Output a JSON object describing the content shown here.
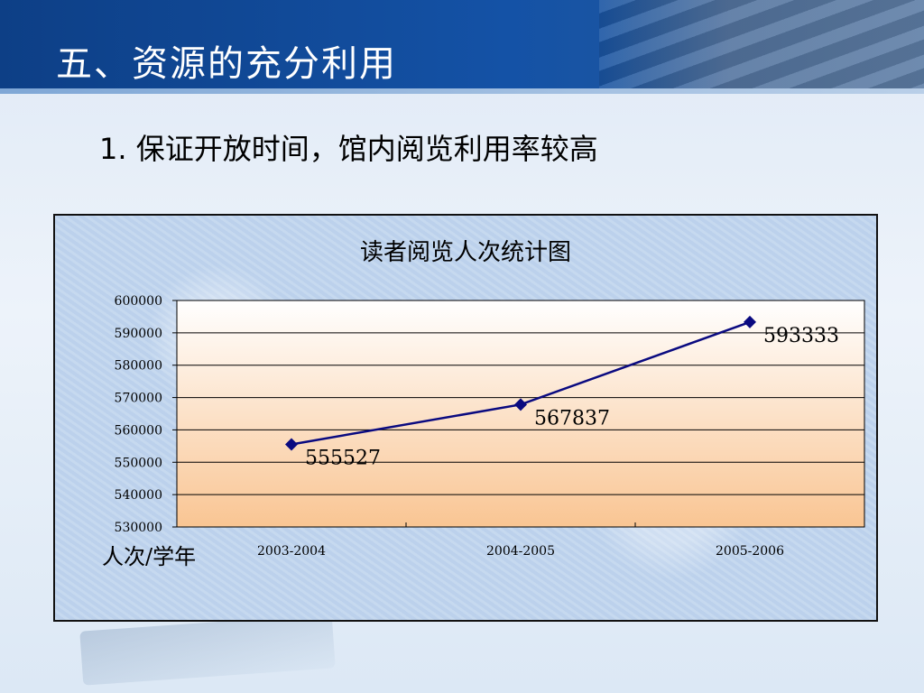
{
  "slide": {
    "title": "五、资源的充分利用",
    "subtitle": "1. 保证开放时间，馆内阅览利用率较高"
  },
  "chart_data": {
    "type": "line",
    "title": "读者阅览人次统计图",
    "ylabel": "人次/学年",
    "xlabel": "",
    "categories": [
      "2003-2004",
      "2004-2005",
      "2005-2006"
    ],
    "series": [
      {
        "values": [
          555527,
          567837,
          593333
        ],
        "color": "#0a0a80"
      }
    ],
    "data_labels": [
      "555527",
      "567837",
      "593333"
    ],
    "ylim": [
      530000,
      600000
    ],
    "yticks": [
      530000,
      540000,
      550000,
      560000,
      570000,
      580000,
      590000,
      600000
    ],
    "ytick_labels": [
      "530000",
      "540000",
      "550000",
      "560000",
      "570000",
      "580000",
      "590000",
      "600000"
    ],
    "grid": true,
    "legend": "none"
  },
  "colors": {
    "header": "#1452a6",
    "line": "#0a0a80",
    "plot_top": "#ffffff",
    "plot_bottom": "#f9c593"
  }
}
